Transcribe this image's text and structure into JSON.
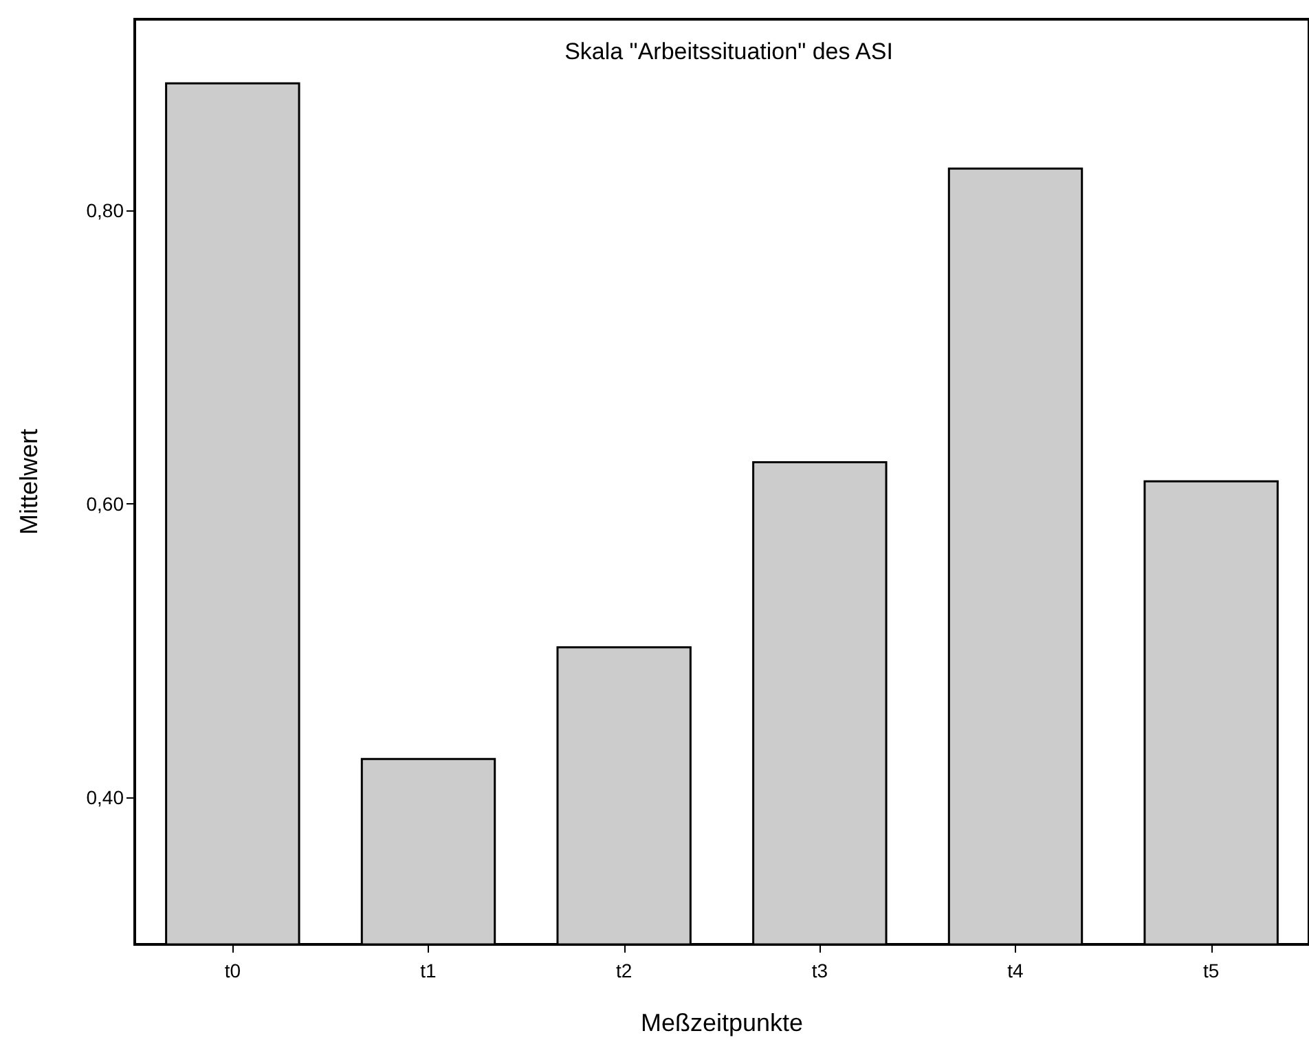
{
  "chart_data": {
    "type": "bar",
    "title": "Skala \"Arbeitssituation\" des ASI",
    "xlabel": "Meßzeitpunkte",
    "ylabel": "Mittelwert",
    "categories": [
      "t0",
      "t1",
      "t2",
      "t3",
      "t4",
      "t5"
    ],
    "values": [
      0.887,
      0.427,
      0.503,
      0.629,
      0.829,
      0.616
    ],
    "color": "#cccccc",
    "ylim": [
      0.3,
      0.93
    ],
    "yticks": [
      {
        "value": 0.4,
        "label": "0,40"
      },
      {
        "value": 0.6,
        "label": "0,60"
      },
      {
        "value": 0.8,
        "label": "0,80"
      }
    ],
    "grid": false
  }
}
